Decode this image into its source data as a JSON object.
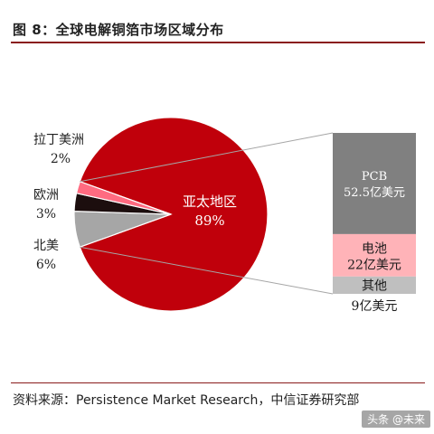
{
  "title": "图 8：全球电解铜箔市场区域分布",
  "source": "资料来源：Persistence Market Research，中信证券研究部",
  "watermark": "头条 @未来",
  "chart_data": [
    {
      "type": "pie",
      "slices": [
        {
          "label": "亚太地区",
          "value": 89,
          "value_text": "89%",
          "color": "#c0000b"
        },
        {
          "label": "北美",
          "value": 6,
          "value_text": "6%",
          "color": "#a6a6a6"
        },
        {
          "label": "欧洲",
          "value": 3,
          "value_text": "3%",
          "color": "#1c0e0e"
        },
        {
          "label": "拉丁美洲",
          "value": 2,
          "value_text": "2%",
          "color": "#ff6b81"
        }
      ]
    },
    {
      "type": "bar",
      "stacked": true,
      "segments": [
        {
          "label": "PCB",
          "value": 52.5,
          "value_text": "52.5亿美元",
          "color": "#808080"
        },
        {
          "label": "电池",
          "value": 22,
          "value_text": "22亿美元",
          "color": "#ffb3b8"
        },
        {
          "label": "其他",
          "value": 9,
          "value_text": "9亿美元",
          "color": "#bfbfbf"
        }
      ]
    }
  ]
}
